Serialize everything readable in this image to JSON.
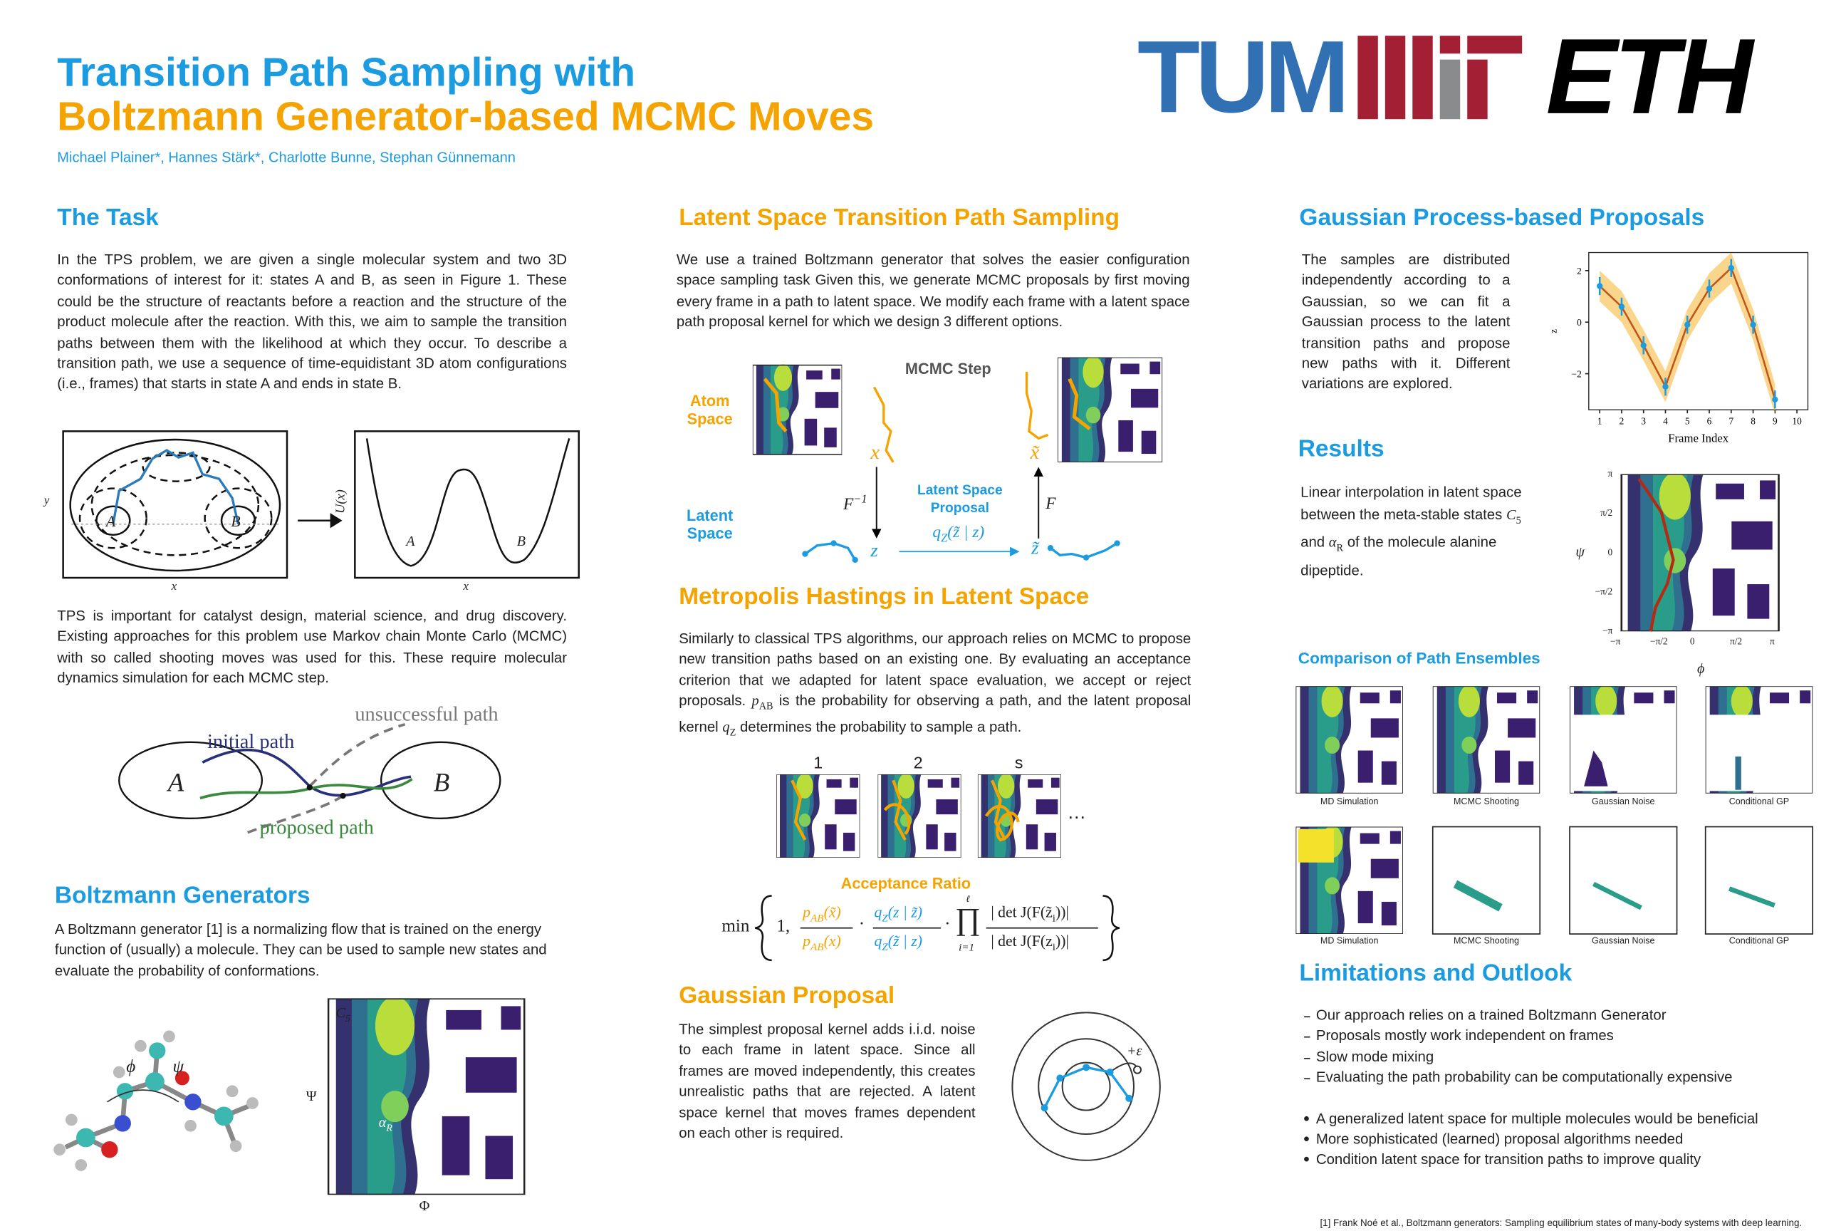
{
  "header": {
    "title_line1": "Transition Path Sampling with",
    "title_line2": "Boltzmann Generator-based MCMC Moves",
    "authors": "Michael Plainer*, Hannes Stärk*, Charlotte Bunne, Stephan Günnemann",
    "logos": [
      "TUM",
      "ETH"
    ]
  },
  "task": {
    "title": "The Task",
    "text1": "In the TPS problem, we are given a single molecular system and two 3D conformations of interest for it: states A and B, as seen in Figure 1. These could be the structure of reactants before a reaction and the structure of the product molecule after the reaction. With this, we aim to sample the transition paths between them with the likelihood at which they occur. To describe a transition path, we use a sequence of time-equidistant 3D atom configurations (i.e., frames) that starts in state A and ends in state B.",
    "figure": {
      "ylabel": "y",
      "xlabel_left": "x",
      "A_left": "A",
      "B_left": "B",
      "ulabel": "U(x)",
      "A_right": "A",
      "B_right": "B",
      "xlabel_right": "x"
    },
    "text2": "TPS is important for catalyst design, material science, and drug discovery. Existing approaches for this problem use Markov chain Monte Carlo (MCMC) with so called shooting moves was used for this. These require molecular dynamics simulation for each MCMC step.",
    "diagram": {
      "unsuccessful": "unsuccessful path",
      "initial": "initial path",
      "A": "A",
      "B": "B",
      "proposed": "proposed path"
    }
  },
  "boltzmann": {
    "title": "Boltzmann Generators",
    "text": "A Boltzmann generator [1] is a normalizing flow that is trained on the energy function of (usually) a molecule. They can be used to sample new states and evaluate the probability of conformations.",
    "phi": "ϕ",
    "psi": "ψ",
    "c5": [
      "C",
      "5"
    ],
    "alpha": [
      "α",
      "R"
    ],
    "yaxis": "Ψ",
    "xaxis": "Φ"
  },
  "latent": {
    "title": "Latent Space Transition Path Sampling",
    "text": "We use a trained Boltzmann generator that solves the easier configuration space sampling task Given this, we generate MCMC proposals by first moving every frame in a path to latent space. We modify each frame with a latent space path proposal kernel for which we design 3 different options.",
    "figure": {
      "atom_space": "Atom Space",
      "latent_space": "Latent Space",
      "mcmc_step": "MCMC Step",
      "x": "x",
      "x_tilde": "x̃",
      "f_inv": [
        "F",
        "−1"
      ],
      "f": "F",
      "proposal": "Latent Space Proposal",
      "q": [
        "q",
        "Z",
        "(z̃ | z)"
      ],
      "z": "z",
      "z_tilde": "z̃"
    }
  },
  "metropolis": {
    "title": "Metropolis Hastings in Latent Space",
    "text": [
      "Similarly to classical TPS algorithms, our approach relies on MCMC to propose new transition paths based on an existing one. By evaluating an acceptance criterion that we adapted for latent space evaluation, we accept or reject proposals. ",
      "p",
      "AB",
      " is the probability for observing a path, and the latent proposal kernel ",
      "q",
      "Z",
      " determines the probability to sample a path."
    ],
    "steps": [
      "1",
      "2",
      "s"
    ],
    "ellipsis": "…",
    "ratio_title": "Acceptance Ratio",
    "formula": {
      "min": "min",
      "one": "1,",
      "num1": [
        "p",
        "AB",
        "(x̃)"
      ],
      "den1": [
        "p",
        "AB",
        "(x)"
      ],
      "num2": [
        "q",
        "Z",
        "(z | z̃)"
      ],
      "den2": [
        "q",
        "Z",
        "(z̃ | z)"
      ],
      "prod": "∏",
      "prod_top": "ℓ",
      "prod_bottom": "i=1",
      "num3": [
        "| det J(F(z̃",
        "i",
        "))|"
      ],
      "den3": [
        "| det J(F(z",
        "i",
        "))|"
      ]
    }
  },
  "gaussian_proposal": {
    "title": "Gaussian Proposal",
    "text": "The simplest proposal kernel adds i.i.d. noise to each frame in latent space. Since all frames are moved independently, this creates unrealistic paths that are rejected. A latent space kernel that moves frames dependent on each other is required.",
    "epsilon": "+ε"
  },
  "gp": {
    "title": "Gaussian Process-based Proposals",
    "text": "The samples are distributed independently according to a Gaussian, so we can fit a Gaussian process to the latent transition paths and propose new paths with it. Different variations are explored.",
    "plot": {
      "xlabel": "Frame Index",
      "ylabel": "z",
      "xlim": [
        0.5,
        10.5
      ],
      "ylim": [
        -3.4,
        2.7
      ],
      "xticks": [
        1,
        2,
        3,
        4,
        5,
        6,
        7,
        8,
        9,
        10
      ],
      "yticks": [
        {
          "value": -2,
          "label": "−2"
        },
        0,
        2
      ],
      "x": [
        1,
        2,
        3,
        4,
        5,
        6,
        7,
        8,
        9
      ],
      "y": [
        1.4,
        0.6,
        -0.9,
        -2.5,
        -0.1,
        1.3,
        2.1,
        -0.1,
        -3.0
      ],
      "error": 0.35,
      "band": 0.6
    }
  },
  "results": {
    "title": "Results",
    "text": [
      "Linear interpolation in latent space between the meta-stable states ",
      "C",
      "5",
      " and ",
      "α",
      "R",
      " of the molecule alanine dipeptide."
    ],
    "ylabel": "ψ",
    "xlabel": "ϕ",
    "yticks": [
      "π",
      "π/2",
      "0",
      "−π/2",
      "−π"
    ],
    "xticks": [
      "−π",
      "−π/2",
      "0",
      "π/2",
      "π"
    ]
  },
  "comparison": {
    "title": "Comparison of Path Ensembles",
    "captions_top": [
      "MD Simulation",
      "MCMC Shooting",
      "Gaussian Noise",
      "Conditional GP"
    ],
    "captions_bottom": [
      "MD Simulation",
      "MCMC Shooting",
      "Gaussian Noise",
      "Conditional GP"
    ]
  },
  "limitations": {
    "title": "Limitations and Outlook",
    "limits": [
      "Our approach relies on a trained Boltzmann Generator",
      "Proposals mostly work independent on frames",
      "Slow mode mixing",
      "Evaluating the path probability can be computationally expensive"
    ],
    "outlook": [
      "A generalized latent space for multiple molecules would be beneficial",
      "More sophisticated (learned) proposal algorithms needed",
      "Condition latent space for transition paths to improve quality"
    ]
  },
  "footnote": "[1] Frank Noé et al., Boltzmann generators: Sampling equilibrium states of many-body systems with deep learning."
}
